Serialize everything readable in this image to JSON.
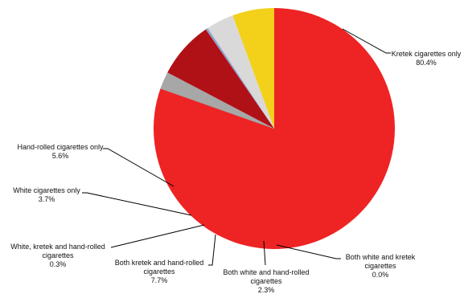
{
  "chart_data": {
    "type": "pie",
    "title": "",
    "slices": [
      {
        "label_lines": [
          "Kretek cigarettes only"
        ],
        "value": 80.4,
        "value_text": "80.4%",
        "color": "#ee2324"
      },
      {
        "label_lines": [
          "Both white and kretek",
          "cigarettes"
        ],
        "value": 0.0,
        "value_text": "0.0%",
        "color": "#9b9b9b"
      },
      {
        "label_lines": [
          "Both white and hand-rolled",
          "cigarettes"
        ],
        "value": 2.3,
        "value_text": "2.3%",
        "color": "#a7a7a7"
      },
      {
        "label_lines": [
          "Both kretek and hand-rolled",
          "cigarettes"
        ],
        "value": 7.7,
        "value_text": "7.7%",
        "color": "#b01117"
      },
      {
        "label_lines": [
          "White, kretek and hand-rolled",
          "cigarettes"
        ],
        "value": 0.3,
        "value_text": "0.3%",
        "color": "#8da2cf"
      },
      {
        "label_lines": [
          "White cigarettes only"
        ],
        "value": 3.7,
        "value_text": "3.7%",
        "color": "#d9d9d9"
      },
      {
        "label_lines": [
          "Hand-rolled cigarettes only"
        ],
        "value": 5.6,
        "value_text": "5.6%",
        "color": "#f3d11b"
      }
    ]
  }
}
